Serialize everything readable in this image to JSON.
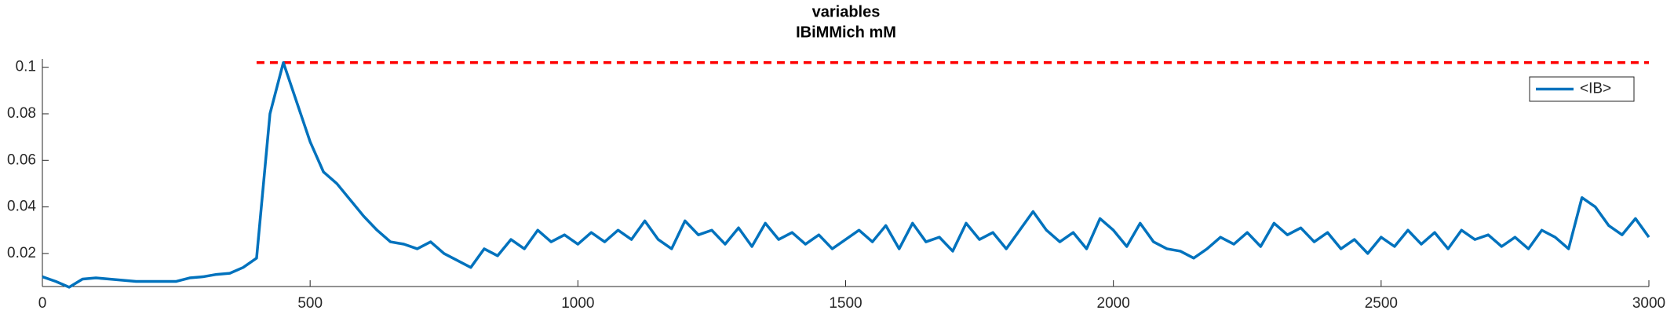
{
  "chart_data": {
    "type": "line",
    "title": "variables",
    "subtitle": "IBiMMich mM",
    "x": [
      0,
      25,
      50,
      75,
      100,
      125,
      150,
      175,
      200,
      225,
      250,
      275,
      300,
      325,
      350,
      375,
      400,
      425,
      450,
      475,
      500,
      525,
      550,
      575,
      600,
      625,
      650,
      675,
      700,
      725,
      750,
      775,
      800,
      825,
      850,
      875,
      900,
      925,
      950,
      975,
      1000,
      1025,
      1050,
      1075,
      1100,
      1125,
      1150,
      1175,
      1200,
      1225,
      1250,
      1275,
      1300,
      1325,
      1350,
      1375,
      1400,
      1425,
      1450,
      1475,
      1500,
      1525,
      1550,
      1575,
      1600,
      1625,
      1650,
      1675,
      1700,
      1725,
      1750,
      1775,
      1800,
      1825,
      1850,
      1875,
      1900,
      1925,
      1950,
      1975,
      2000,
      2025,
      2050,
      2075,
      2100,
      2125,
      2150,
      2175,
      2200,
      2225,
      2250,
      2275,
      2300,
      2325,
      2350,
      2375,
      2400,
      2425,
      2450,
      2475,
      2500,
      2525,
      2550,
      2575,
      2600,
      2625,
      2650,
      2675,
      2700,
      2725,
      2750,
      2775,
      2800,
      2825,
      2850,
      2875,
      2900,
      2925,
      2950,
      2975,
      3000
    ],
    "series": [
      {
        "name": "<IB>",
        "color": "#0072bd",
        "values": [
          0.01,
          0.008,
          0.0055,
          0.009,
          0.0095,
          0.009,
          0.0085,
          0.008,
          0.008,
          0.008,
          0.008,
          0.0095,
          0.01,
          0.011,
          0.0115,
          0.014,
          0.018,
          0.08,
          0.102,
          0.085,
          0.068,
          0.055,
          0.05,
          0.043,
          0.036,
          0.03,
          0.025,
          0.024,
          0.022,
          0.025,
          0.02,
          0.017,
          0.014,
          0.022,
          0.019,
          0.026,
          0.022,
          0.03,
          0.025,
          0.028,
          0.024,
          0.029,
          0.025,
          0.03,
          0.026,
          0.034,
          0.026,
          0.022,
          0.034,
          0.028,
          0.03,
          0.024,
          0.031,
          0.023,
          0.033,
          0.026,
          0.029,
          0.024,
          0.028,
          0.022,
          0.026,
          0.03,
          0.025,
          0.032,
          0.022,
          0.033,
          0.025,
          0.027,
          0.021,
          0.033,
          0.026,
          0.029,
          0.022,
          0.03,
          0.038,
          0.03,
          0.025,
          0.029,
          0.022,
          0.035,
          0.03,
          0.023,
          0.033,
          0.025,
          0.022,
          0.021,
          0.018,
          0.022,
          0.027,
          0.024,
          0.029,
          0.023,
          0.033,
          0.028,
          0.031,
          0.025,
          0.029,
          0.022,
          0.026,
          0.02,
          0.027,
          0.023,
          0.03,
          0.024,
          0.029,
          0.022,
          0.03,
          0.026,
          0.028,
          0.023,
          0.027,
          0.022,
          0.03,
          0.027,
          0.022,
          0.044,
          0.04,
          0.032,
          0.028,
          0.035,
          0.027
        ]
      }
    ],
    "threshold": {
      "value": 0.102,
      "x": [
        400,
        3000
      ],
      "color": "#ff0000"
    },
    "xlim": [
      0,
      3000
    ],
    "ylim": [
      0.0058,
      0.1036
    ],
    "xticks": [
      0,
      500,
      1000,
      1500,
      2000,
      2500,
      3000
    ],
    "yticks": [
      0.02,
      0.04,
      0.06,
      0.08,
      0.1
    ],
    "legend": "upper right"
  }
}
